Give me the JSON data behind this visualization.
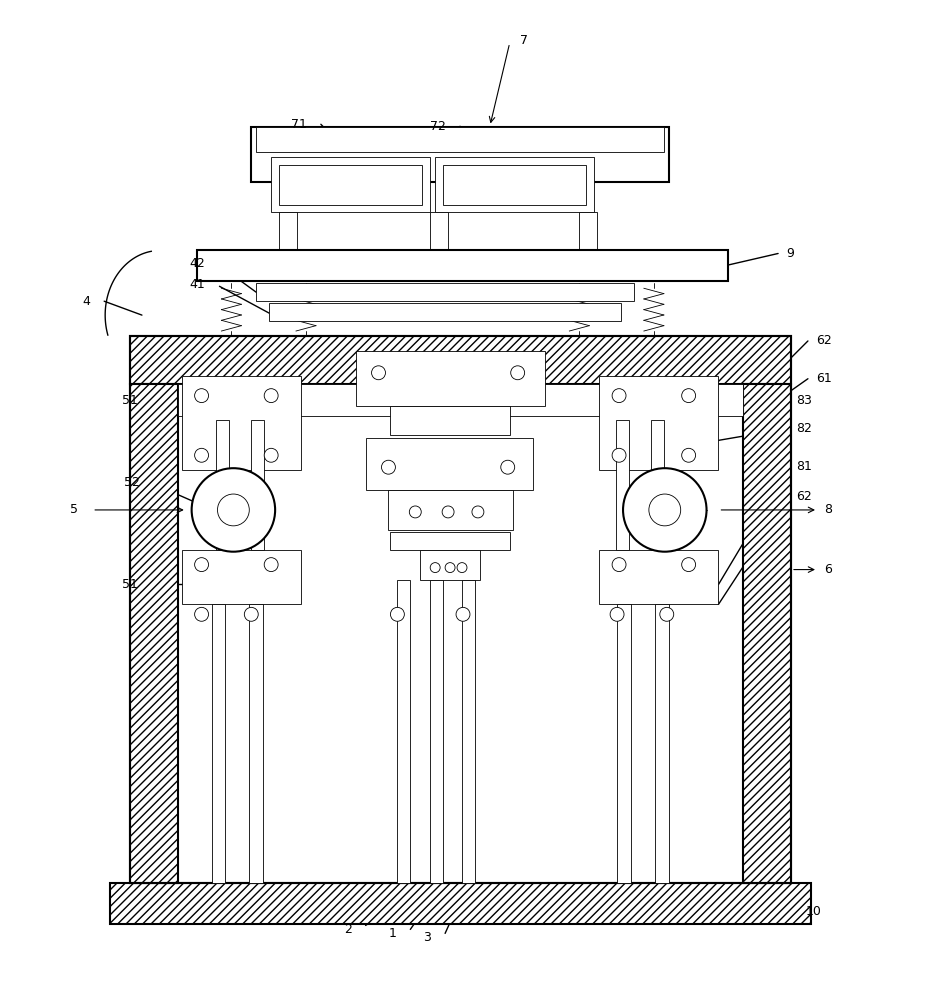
{
  "bg_color": "#ffffff",
  "lc": "#000000",
  "fig_w": 9.27,
  "fig_h": 10.0,
  "dpi": 100,
  "lw_main": 1.5,
  "lw_med": 1.0,
  "lw_thin": 0.6,
  "fs": 9
}
